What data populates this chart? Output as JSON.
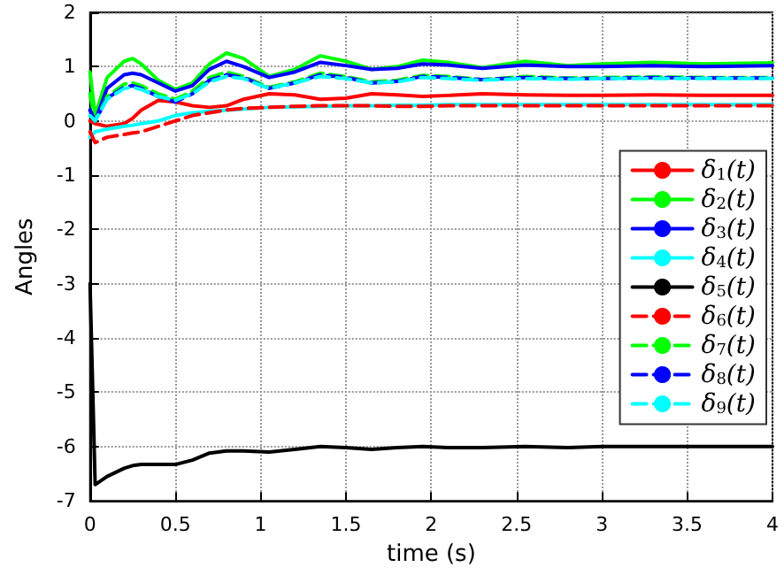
{
  "chart_data": {
    "type": "line",
    "xlabel": "time (s)",
    "ylabel": "Angles",
    "xlim": [
      0,
      4
    ],
    "xticks": [
      0,
      0.5,
      1,
      1.5,
      2,
      2.5,
      3,
      3.5,
      4
    ],
    "ylim": [
      -7,
      2
    ],
    "yticks": [
      -7,
      -6,
      -5,
      -4,
      -3,
      -2,
      -1,
      0,
      1,
      2
    ],
    "grid": true,
    "legend": "right",
    "marker": "none",
    "x": [
      0,
      0.03,
      0.1,
      0.2,
      0.25,
      0.3,
      0.4,
      0.5,
      0.6,
      0.7,
      0.8,
      0.9,
      1.05,
      1.2,
      1.35,
      1.5,
      1.65,
      1.8,
      1.95,
      2.1,
      2.3,
      2.55,
      2.8,
      3.0,
      3.3,
      3.6,
      4.0
    ],
    "series": [
      {
        "name": "δ$_{1}$(t)",
        "color": "#ff0000",
        "line_style": "solid",
        "values": [
          0,
          -0.05,
          -0.1,
          -0.05,
          0.05,
          0.2,
          0.38,
          0.35,
          0.28,
          0.25,
          0.28,
          0.4,
          0.5,
          0.48,
          0.4,
          0.42,
          0.5,
          0.48,
          0.45,
          0.47,
          0.5,
          0.48,
          0.47,
          0.47,
          0.48,
          0.47,
          0.47
        ]
      },
      {
        "name": "δ$_{2}$(t)",
        "color": "#00ff00",
        "line_style": "solid",
        "values": [
          0.9,
          0.1,
          0.8,
          1.1,
          1.15,
          1.05,
          0.75,
          0.58,
          0.7,
          1.05,
          1.25,
          1.15,
          0.82,
          0.95,
          1.2,
          1.1,
          0.95,
          1.0,
          1.12,
          1.08,
          0.98,
          1.1,
          1.02,
          1.05,
          1.08,
          1.05,
          1.07
        ]
      },
      {
        "name": "δ$_{3}$(t)",
        "color": "#0000ff",
        "line_style": "solid",
        "values": [
          0.2,
          0.0,
          0.6,
          0.85,
          0.88,
          0.85,
          0.7,
          0.55,
          0.65,
          0.95,
          1.1,
          1.0,
          0.8,
          0.9,
          1.08,
          1.02,
          0.95,
          0.97,
          1.05,
          1.03,
          0.97,
          1.03,
          1.0,
          1.0,
          1.02,
          1.0,
          1.02
        ]
      },
      {
        "name": "δ$_{4}$(t)",
        "color": "#00ffff",
        "line_style": "solid",
        "values": [
          -0.3,
          -0.2,
          -0.15,
          -0.1,
          -0.08,
          -0.05,
          0.0,
          0.1,
          0.15,
          0.18,
          0.2,
          0.22,
          0.25,
          0.26,
          0.27,
          0.28,
          0.28,
          0.29,
          0.29,
          0.3,
          0.3,
          0.3,
          0.3,
          0.3,
          0.3,
          0.3,
          0.3
        ]
      },
      {
        "name": "δ$_{5}$(t)",
        "color": "#000000",
        "line_style": "solid",
        "values": [
          -3,
          -6.7,
          -6.55,
          -6.4,
          -6.35,
          -6.33,
          -6.33,
          -6.33,
          -6.25,
          -6.12,
          -6.08,
          -6.08,
          -6.1,
          -6.05,
          -6.0,
          -6.02,
          -6.05,
          -6.02,
          -6.0,
          -6.02,
          -6.02,
          -6.0,
          -6.02,
          -6.0,
          -6.0,
          -6.0,
          -6.0
        ]
      },
      {
        "name": "δ$_{6}$(t)",
        "color": "#ff0000",
        "line_style": "dashed",
        "values": [
          -0.2,
          -0.4,
          -0.3,
          -0.25,
          -0.22,
          -0.2,
          -0.1,
          0.0,
          0.1,
          0.15,
          0.2,
          0.23,
          0.25,
          0.27,
          0.28,
          0.28,
          0.28,
          0.27,
          0.27,
          0.28,
          0.28,
          0.28,
          0.28,
          0.28,
          0.28,
          0.28,
          0.28
        ]
      },
      {
        "name": "δ$_{7}$(t)",
        "color": "#00ff00",
        "line_style": "dashed",
        "values": [
          0.5,
          0.0,
          0.45,
          0.68,
          0.7,
          0.65,
          0.5,
          0.4,
          0.55,
          0.8,
          0.9,
          0.82,
          0.62,
          0.72,
          0.88,
          0.82,
          0.72,
          0.75,
          0.84,
          0.82,
          0.76,
          0.82,
          0.79,
          0.8,
          0.81,
          0.8,
          0.8
        ]
      },
      {
        "name": "δ$_{8}$(t)",
        "color": "#0000ff",
        "line_style": "dashed",
        "values": [
          0.2,
          0.0,
          0.42,
          0.62,
          0.65,
          0.6,
          0.45,
          0.35,
          0.5,
          0.75,
          0.85,
          0.8,
          0.6,
          0.7,
          0.85,
          0.8,
          0.7,
          0.73,
          0.82,
          0.8,
          0.76,
          0.8,
          0.78,
          0.78,
          0.8,
          0.79,
          0.79
        ]
      },
      {
        "name": "δ$_{9}$(t)",
        "color": "#00ffff",
        "line_style": "dashed",
        "values": [
          0.1,
          0.0,
          0.4,
          0.6,
          0.62,
          0.58,
          0.45,
          0.38,
          0.5,
          0.72,
          0.82,
          0.78,
          0.6,
          0.7,
          0.82,
          0.78,
          0.7,
          0.72,
          0.8,
          0.78,
          0.75,
          0.78,
          0.77,
          0.78,
          0.78,
          0.78,
          0.78
        ]
      }
    ]
  }
}
